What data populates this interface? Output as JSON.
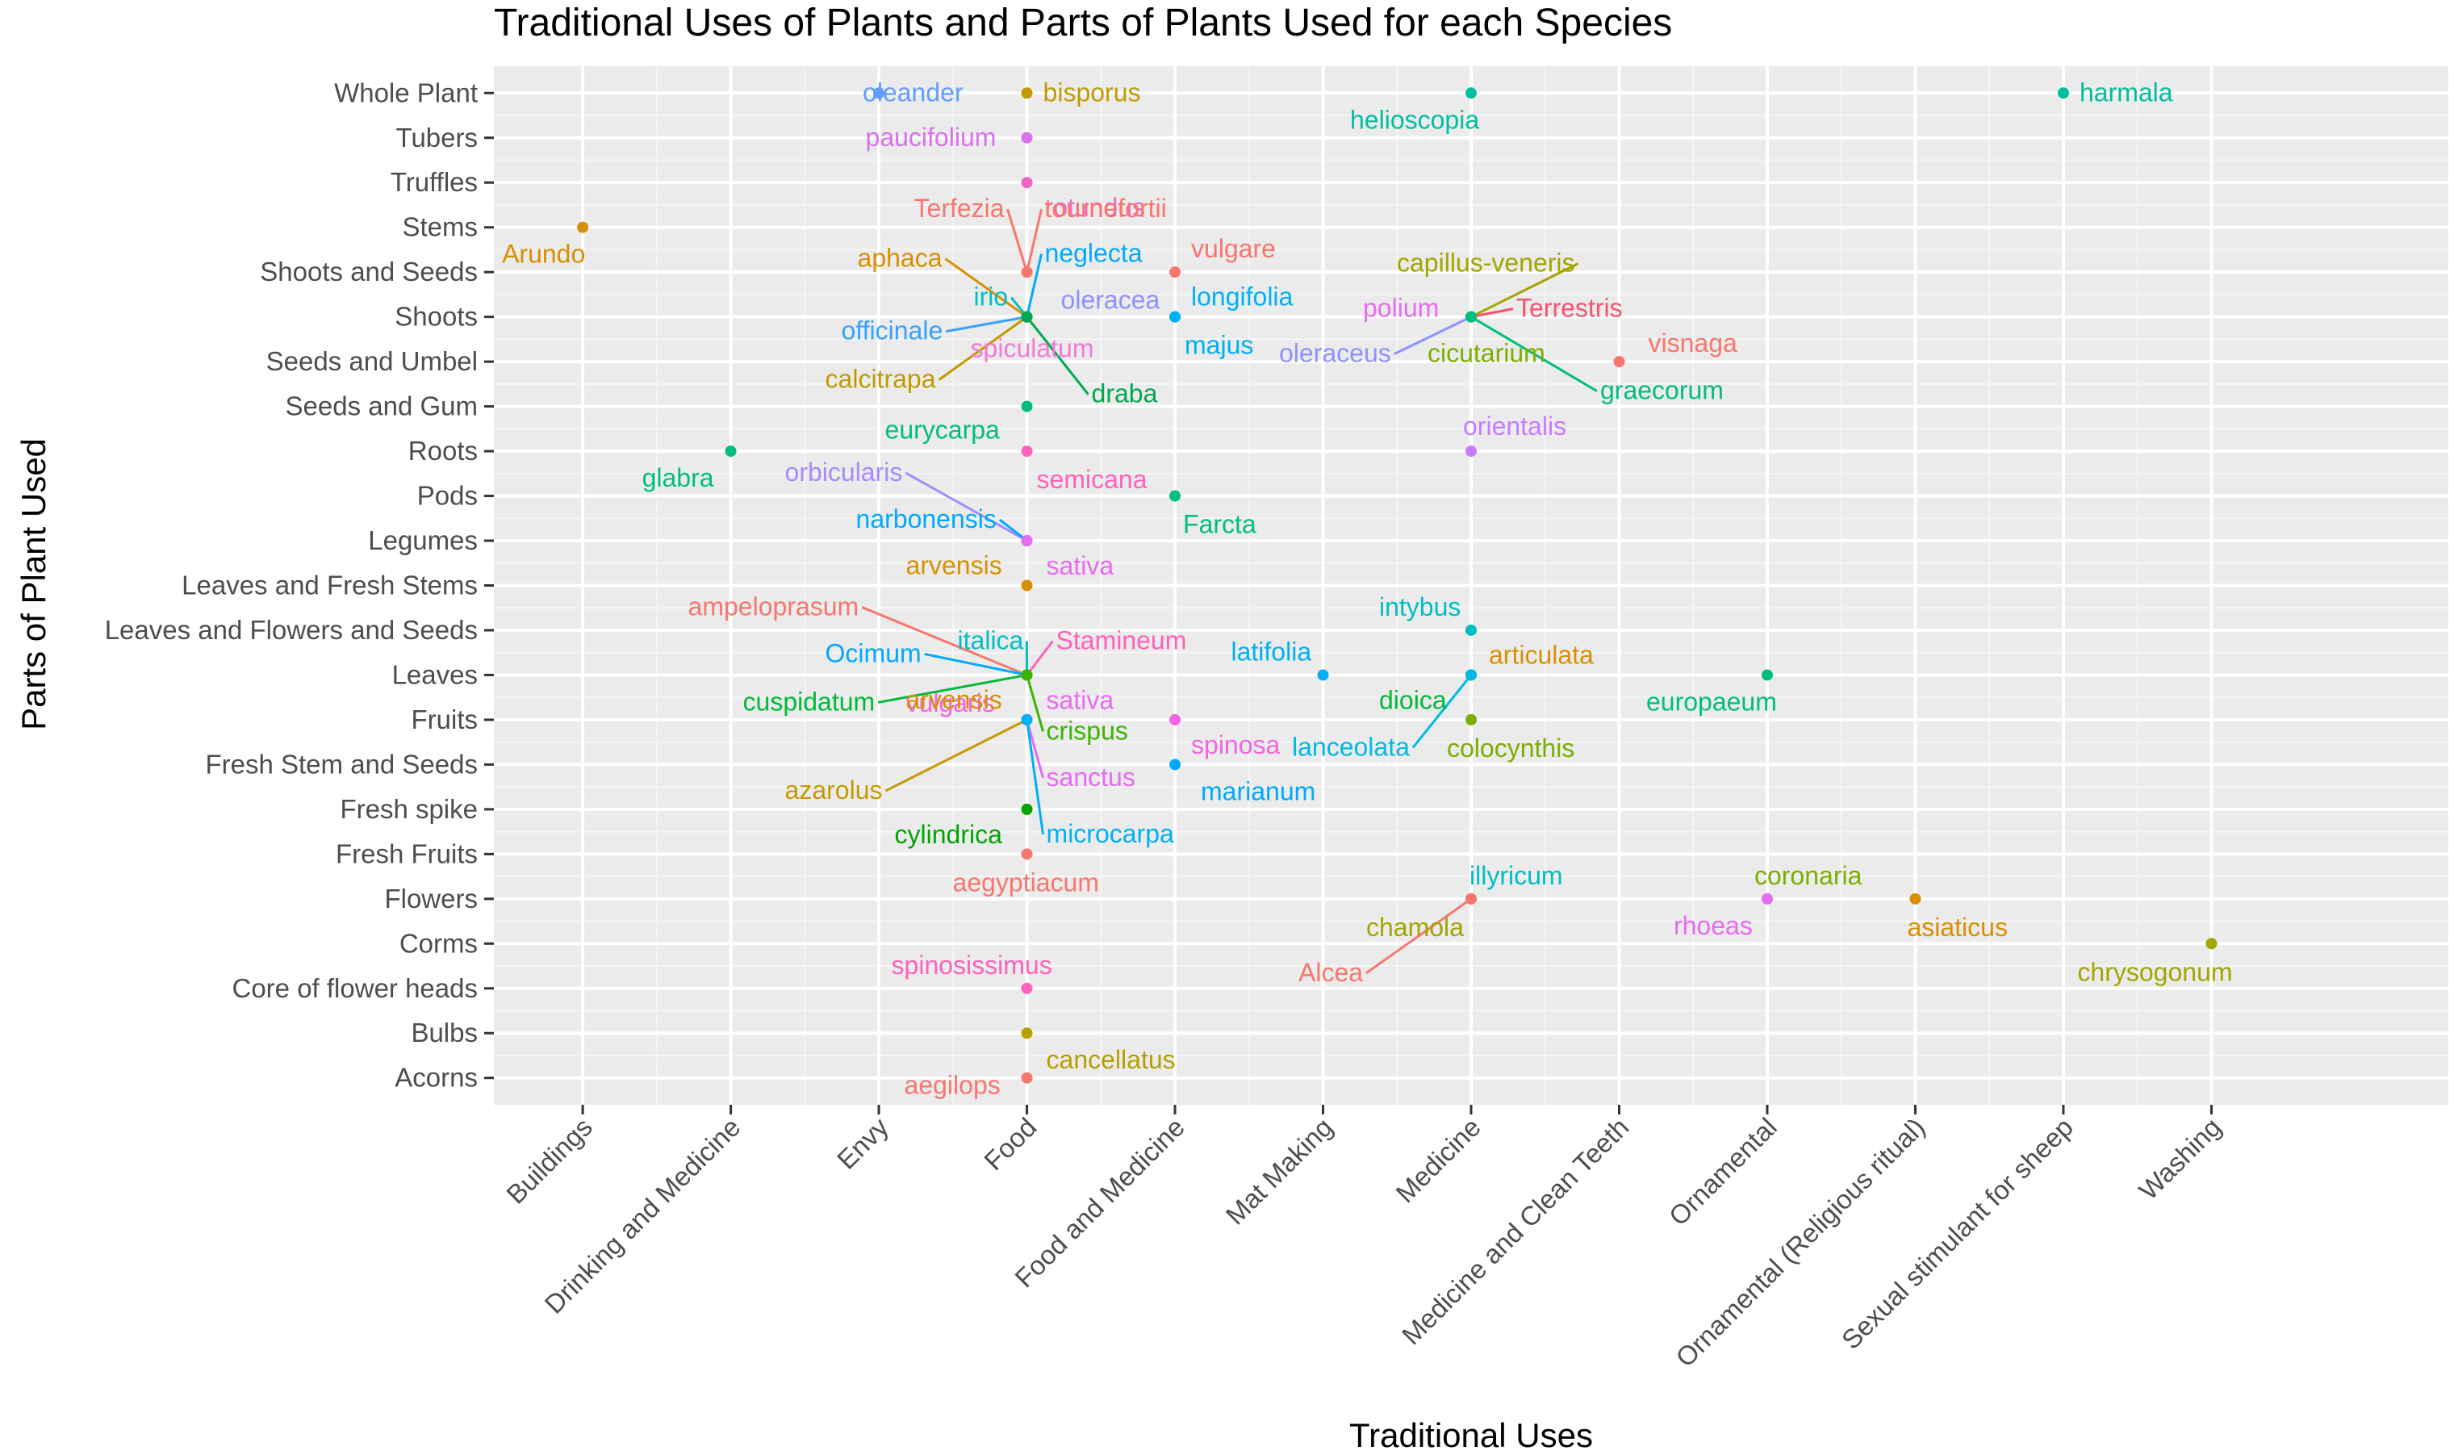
{
  "chart_data": {
    "type": "scatter",
    "title": "Traditional Uses of Plants and Parts of Plants Used for each Species",
    "xlabel": "Traditional Uses",
    "ylabel": "Parts of Plant Used",
    "x_categories": [
      "Buildings",
      "Drinking and Medicine",
      "Envy",
      "Food",
      "Food and Medicine",
      "Mat Making",
      "Medicine",
      "Medicine and Clean Teeth",
      "Ornamental",
      "Ornamental (Religious ritual)",
      "Sexual stimulant for sheep",
      "Washing"
    ],
    "y_categories": [
      "Acorns",
      "Bulbs",
      "Core of flower heads",
      "Corms",
      "Flowers",
      "Fresh Fruits",
      "Fresh spike",
      "Fresh Stem and Seeds",
      "Fruits",
      "Leaves",
      "Leaves and Flowers and Seeds",
      "Leaves and Fresh Stems",
      "Legumes",
      "Pods",
      "Roots",
      "Seeds and Gum",
      "Seeds and Umbel",
      "Shoots",
      "Shoots and Seeds",
      "Stems",
      "Truffles",
      "Tubers",
      "Whole Plant"
    ],
    "grid": true,
    "legend": "none",
    "points": [
      {
        "x": "Envy",
        "y": "Whole Plant",
        "label": "oleander",
        "color": "#619CFF"
      },
      {
        "x": "Food",
        "y": "Whole Plant",
        "label": "bisporus",
        "color": "#C09B00"
      },
      {
        "x": "Medicine",
        "y": "Whole Plant",
        "label": "helioscopia",
        "color": "#00BFA0"
      },
      {
        "x": "Sexual stimulant for sheep",
        "y": "Whole Plant",
        "label": "harmala",
        "color": "#00BF9C"
      },
      {
        "x": "Food",
        "y": "Tubers",
        "label": "paucifolium",
        "color": "#D772EC"
      },
      {
        "x": "Food",
        "y": "Truffles",
        "label": "rotundus",
        "color": "#F066C4"
      },
      {
        "x": "Buildings",
        "y": "Stems",
        "label": "Arundo",
        "color": "#D89000"
      },
      {
        "x": "Food",
        "y": "Shoots and Seeds",
        "label": "Terfezia",
        "color": "#F8766D"
      },
      {
        "x": "Food",
        "y": "Shoots and Seeds",
        "label": "tournefortii",
        "color": "#F8766D"
      },
      {
        "x": "Food and Medicine",
        "y": "Shoots and Seeds",
        "label": "vulgare",
        "color": "#F8766D"
      },
      {
        "x": "Food",
        "y": "Shoots",
        "label": "aphaca",
        "color": "#D89000"
      },
      {
        "x": "Food",
        "y": "Shoots",
        "label": "neglecta",
        "color": "#00A9FF"
      },
      {
        "x": "Food",
        "y": "Shoots",
        "label": "irio",
        "color": "#00BFC4"
      },
      {
        "x": "Food",
        "y": "Shoots",
        "label": "oleracea",
        "color": "#8F91FF"
      },
      {
        "x": "Food",
        "y": "Shoots",
        "label": "officinale",
        "color": "#35A2FF"
      },
      {
        "x": "Food",
        "y": "Shoots",
        "label": "spiculatum",
        "color": "#F27AD6"
      },
      {
        "x": "Food",
        "y": "Shoots",
        "label": "calcitrapa",
        "color": "#C09B00"
      },
      {
        "x": "Food",
        "y": "Shoots",
        "label": "draba",
        "color": "#00A84F"
      },
      {
        "x": "Food and Medicine",
        "y": "Shoots",
        "label": "longifolia",
        "color": "#00B0F6"
      },
      {
        "x": "Food and Medicine",
        "y": "Shoots",
        "label": "majus",
        "color": "#00B0F6"
      },
      {
        "x": "Medicine",
        "y": "Shoots",
        "label": "capillus-veneris",
        "color": "#A3A500"
      },
      {
        "x": "Medicine",
        "y": "Shoots",
        "label": "polium",
        "color": "#E76BF3"
      },
      {
        "x": "Medicine",
        "y": "Shoots",
        "label": "Terrestris",
        "color": "#F8506E"
      },
      {
        "x": "Medicine",
        "y": "Shoots",
        "label": "oleraceus",
        "color": "#8F91FF"
      },
      {
        "x": "Medicine",
        "y": "Shoots",
        "label": "cicutarium",
        "color": "#7CAE00"
      },
      {
        "x": "Medicine",
        "y": "Shoots",
        "label": "graecorum",
        "color": "#00BF7D"
      },
      {
        "x": "Medicine and Clean Teeth",
        "y": "Seeds and Umbel",
        "label": "visnaga",
        "color": "#F8766D"
      },
      {
        "x": "Food",
        "y": "Seeds and Gum",
        "label": "eurycarpa",
        "color": "#00BF7D"
      },
      {
        "x": "Drinking and Medicine",
        "y": "Roots",
        "label": "glabra",
        "color": "#00BF7D"
      },
      {
        "x": "Food",
        "y": "Roots",
        "label": "semicana",
        "color": "#FF62BC"
      },
      {
        "x": "Medicine",
        "y": "Roots",
        "label": "orientalis",
        "color": "#C77CFF"
      },
      {
        "x": "Food and Medicine",
        "y": "Pods",
        "label": "Farcta",
        "color": "#00BF7D"
      },
      {
        "x": "Food",
        "y": "Legumes",
        "label": "orbicularis",
        "color": "#A58AFF"
      },
      {
        "x": "Food",
        "y": "Legumes",
        "label": "narbonensis",
        "color": "#00A9FF"
      },
      {
        "x": "Food",
        "y": "Legumes",
        "label": "sativa",
        "color": "#E76BF3"
      },
      {
        "x": "Food",
        "y": "Leaves and Fresh Stems",
        "label": "arvensis",
        "color": "#D89000"
      },
      {
        "x": "Medicine",
        "y": "Leaves and Flowers and Seeds",
        "label": "intybus",
        "color": "#00BFC4"
      },
      {
        "x": "Food",
        "y": "Leaves",
        "label": "ampeloprasum",
        "color": "#F8766D"
      },
      {
        "x": "Food",
        "y": "Leaves",
        "label": "italica",
        "color": "#00BFC4"
      },
      {
        "x": "Food",
        "y": "Leaves",
        "label": "Stamineum",
        "color": "#FF62BC"
      },
      {
        "x": "Food",
        "y": "Leaves",
        "label": "Ocimum",
        "color": "#00A9FF"
      },
      {
        "x": "Food",
        "y": "Leaves",
        "label": "cuspidatum",
        "color": "#00BA38"
      },
      {
        "x": "Food",
        "y": "Leaves",
        "label": "sativa",
        "color": "#E76BF3"
      },
      {
        "x": "Food",
        "y": "Leaves",
        "label": "crispus",
        "color": "#39B600"
      },
      {
        "x": "Mat Making",
        "y": "Leaves",
        "label": "latifolia",
        "color": "#00B0F6"
      },
      {
        "x": "Medicine",
        "y": "Leaves",
        "label": "articulata",
        "color": "#D89000"
      },
      {
        "x": "Medicine",
        "y": "Leaves",
        "label": "dioica",
        "color": "#00BA38"
      },
      {
        "x": "Medicine",
        "y": "Leaves",
        "label": "lanceolata",
        "color": "#00B8E7"
      },
      {
        "x": "Ornamental",
        "y": "Leaves",
        "label": "europaeum",
        "color": "#00BF7D"
      },
      {
        "x": "Food",
        "y": "Fruits",
        "label": "vulgaris",
        "color": "#F564E3"
      },
      {
        "x": "Food",
        "y": "Fruits",
        "label": "arvensis",
        "color": "#D89000"
      },
      {
        "x": "Food",
        "y": "Fruits",
        "label": "azarolus",
        "color": "#C49A00"
      },
      {
        "x": "Food",
        "y": "Fruits",
        "label": "sanctus",
        "color": "#E76BF3"
      },
      {
        "x": "Food",
        "y": "Fruits",
        "label": "microcarpa",
        "color": "#00B0F6"
      },
      {
        "x": "Food and Medicine",
        "y": "Fruits",
        "label": "spinosa",
        "color": "#F564E3"
      },
      {
        "x": "Medicine",
        "y": "Fruits",
        "label": "colocynthis",
        "color": "#7CAE00"
      },
      {
        "x": "Food and Medicine",
        "y": "Fresh Stem and Seeds",
        "label": "marianum",
        "color": "#00A9FF"
      },
      {
        "x": "Food",
        "y": "Fresh spike",
        "label": "cylindrica",
        "color": "#00A600"
      },
      {
        "x": "Food",
        "y": "Fresh Fruits",
        "label": "aegyptiacum",
        "color": "#F8766D"
      },
      {
        "x": "Medicine",
        "y": "Flowers",
        "label": "illyricum",
        "color": "#00BFC4"
      },
      {
        "x": "Medicine",
        "y": "Flowers",
        "label": "chamola",
        "color": "#A3A500"
      },
      {
        "x": "Medicine",
        "y": "Flowers",
        "label": "Alcea",
        "color": "#F8766D"
      },
      {
        "x": "Ornamental",
        "y": "Flowers",
        "label": "coronaria",
        "color": "#7CAE00"
      },
      {
        "x": "Ornamental",
        "y": "Flowers",
        "label": "rhoeas",
        "color": "#E76BF3"
      },
      {
        "x": "Ornamental (Religious ritual)",
        "y": "Flowers",
        "label": "asiaticus",
        "color": "#D89000"
      },
      {
        "x": "Washing",
        "y": "Corms",
        "label": "chrysogonum",
        "color": "#A3A500"
      },
      {
        "x": "Food",
        "y": "Core of flower heads",
        "label": "spinosissimus",
        "color": "#FF62BC"
      },
      {
        "x": "Food",
        "y": "Bulbs",
        "label": "cancellatus",
        "color": "#B79F00"
      },
      {
        "x": "Food",
        "y": "Acorns",
        "label": "aegilops",
        "color": "#F8766D"
      }
    ]
  }
}
